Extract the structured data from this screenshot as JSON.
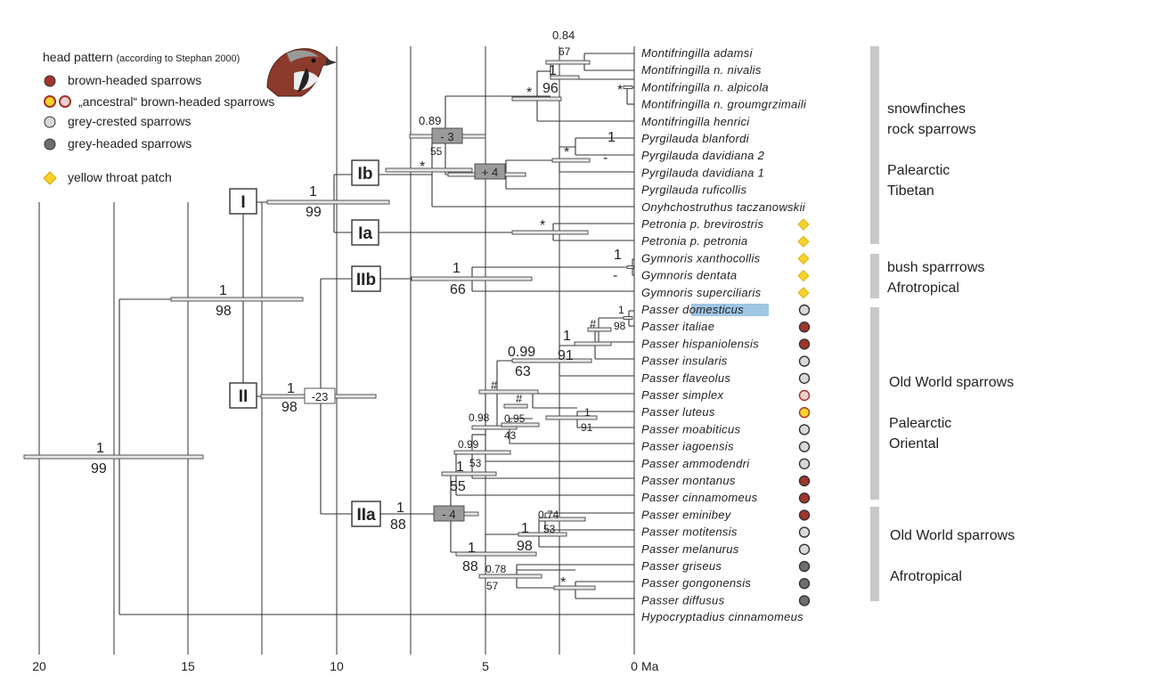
{
  "legend": {
    "title": "head pattern",
    "title_note": "(according to Stephan 2000)",
    "items": [
      {
        "label": "brown-headed sparrows",
        "icon": "brown-dot-icon",
        "color": "#a3342a"
      },
      {
        "label": "„ancestral“ brown-headed sparrows",
        "icon": "ancestral-dots-icon",
        "color": "#f0d020"
      },
      {
        "label": "grey-crested sparrows",
        "icon": "light-grey-dot-icon",
        "color": "#d8d8d8"
      },
      {
        "label": "grey-headed sparrows",
        "icon": "dark-grey-dot-icon",
        "color": "#6e6e6e"
      }
    ],
    "throat": {
      "label": "yellow throat patch",
      "icon": "yellow-diamond-icon",
      "color": "#f6d32a"
    }
  },
  "taxa": [
    {
      "name": "Montifringilla adamsi",
      "head": "",
      "throat": false
    },
    {
      "name": "Montifringilla n. nivalis",
      "head": "",
      "throat": false
    },
    {
      "name": "Montifringilla n. alpicola",
      "head": "",
      "throat": false
    },
    {
      "name": "Montifringilla n. groumgrzimaili",
      "head": "",
      "throat": false
    },
    {
      "name": "Montifringilla henrici",
      "head": "",
      "throat": false
    },
    {
      "name": "Pyrgilauda blanfordi",
      "head": "",
      "throat": false
    },
    {
      "name": "Pyrgilauda davidiana 2",
      "head": "",
      "throat": false
    },
    {
      "name": "Pyrgilauda davidiana 1",
      "head": "",
      "throat": false
    },
    {
      "name": "Pyrgilauda ruficollis",
      "head": "",
      "throat": false
    },
    {
      "name": "Onyhchostruthus taczanowskii",
      "head": "",
      "throat": false
    },
    {
      "name": "Petronia p. brevirostris",
      "head": "",
      "throat": true
    },
    {
      "name": "Petronia p. petronia",
      "head": "",
      "throat": true
    },
    {
      "name": "Gymnoris xanthocollis",
      "head": "",
      "throat": true
    },
    {
      "name": "Gymnoris dentata",
      "head": "",
      "throat": true
    },
    {
      "name": "Gymnoris superciliaris",
      "head": "",
      "throat": true
    },
    {
      "name": "Passer domesticus",
      "head": "grey",
      "throat": false,
      "highlight": "domesticus"
    },
    {
      "name": "Passer italiae",
      "head": "brown",
      "throat": false
    },
    {
      "name": "Passer hispaniolensis",
      "head": "brown",
      "throat": false
    },
    {
      "name": "Passer insularis",
      "head": "grey",
      "throat": false
    },
    {
      "name": "Passer flaveolus",
      "head": "grey",
      "throat": false
    },
    {
      "name": "Passer simplex",
      "head": "ancestral",
      "throat": false
    },
    {
      "name": "Passer luteus",
      "head": "ancestral-yellow",
      "throat": false
    },
    {
      "name": "Passer moabiticus",
      "head": "grey",
      "throat": false
    },
    {
      "name": "Passer iagoensis",
      "head": "grey",
      "throat": false
    },
    {
      "name": "Passer ammodendri",
      "head": "grey",
      "throat": false
    },
    {
      "name": "Passer montanus",
      "head": "brown",
      "throat": false
    },
    {
      "name": "Passer cinnamomeus",
      "head": "brown",
      "throat": false
    },
    {
      "name": "Passer eminibey",
      "head": "brown",
      "throat": false
    },
    {
      "name": "Passer motitensis",
      "head": "grey",
      "throat": false
    },
    {
      "name": "Passer melanurus",
      "head": "grey",
      "throat": false
    },
    {
      "name": "Passer griseus",
      "head": "dark",
      "throat": false
    },
    {
      "name": "Passer gongonensis",
      "head": "dark",
      "throat": false
    },
    {
      "name": "Passer diffusus",
      "head": "dark",
      "throat": false
    },
    {
      "name": "Hypocryptadius cinnamomeus",
      "head": "",
      "throat": false
    }
  ],
  "groups": [
    {
      "lines": [
        "snowfinches",
        "rock sparrows"
      ]
    },
    {
      "lines": [
        "Palearctic",
        "Tibetan"
      ]
    },
    {
      "lines": [
        "bush sparrrows",
        "Afrotropical"
      ]
    },
    {
      "lines": [
        "Old World sparrows"
      ]
    },
    {
      "lines": [
        "Palearctic",
        "Oriental"
      ]
    },
    {
      "lines": [
        "Old World sparrows"
      ]
    },
    {
      "lines": [
        "Afrotropical"
      ]
    }
  ],
  "clades": [
    "I",
    "Ib",
    "Ia",
    "IIb",
    "II",
    "IIa"
  ],
  "node_labels": [
    "0.84",
    "67",
    "1",
    "96",
    "*",
    "*",
    "0.89",
    "- 3",
    "55",
    "*",
    "+ 4",
    "*",
    "1",
    "-",
    "1",
    "99",
    "*",
    "1",
    "-",
    "1",
    "66",
    "1",
    "98",
    "1",
    "98",
    "-23",
    "1",
    "99",
    "#",
    "1",
    "98",
    "1",
    "91",
    "0.99",
    "63",
    "#",
    "#",
    "0.98",
    "0.95",
    "43",
    "1",
    "91",
    "0.99",
    "1",
    "53",
    "55",
    "1",
    "88",
    "- 4",
    "0.74",
    "1",
    "53",
    "98",
    "1",
    "88",
    "0.78",
    "57",
    "*"
  ],
  "axis": {
    "ticks": [
      "20",
      "15",
      "10",
      "5",
      "0"
    ],
    "unit": "Ma"
  }
}
